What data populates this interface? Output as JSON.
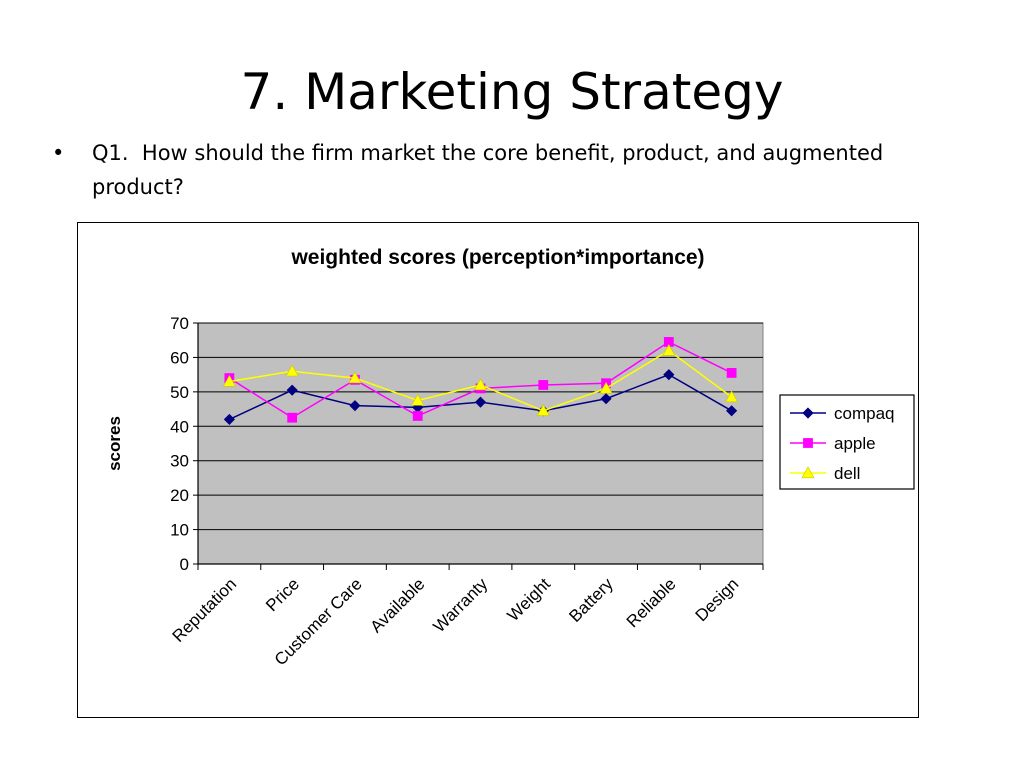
{
  "slide": {
    "title": "7. Marketing Strategy",
    "bullet_symbol": "•",
    "bullet_text": "Q1.  How should the firm market the core benefit, product, and augmented product?"
  },
  "chart_data": {
    "type": "line",
    "title": "weighted scores (perception*importance)",
    "xlabel": "",
    "ylabel": "scores",
    "categories": [
      "Reputation",
      "Price",
      "Customer Care",
      "Available",
      "Warranty",
      "Weight",
      "Battery",
      "Reliable",
      "Design"
    ],
    "ylim": [
      0,
      70
    ],
    "yticks": [
      0,
      10,
      20,
      30,
      40,
      50,
      60,
      70
    ],
    "grid": true,
    "legend_position": "right",
    "plot_background": "#c0c0c0",
    "series": [
      {
        "name": "compaq",
        "color": "#000080",
        "marker": "diamond",
        "values": [
          42,
          50.5,
          46,
          45.5,
          47,
          44.5,
          48,
          55,
          44.5
        ]
      },
      {
        "name": "apple",
        "color": "#ff00ff",
        "marker": "square",
        "values": [
          54,
          42.5,
          53.5,
          43,
          51,
          52,
          52.5,
          64.5,
          55.5
        ]
      },
      {
        "name": "dell",
        "color": "#ffff00",
        "marker": "triangle",
        "values": [
          53,
          56,
          54,
          47.5,
          52,
          44.5,
          51,
          62,
          48.5
        ]
      }
    ]
  }
}
